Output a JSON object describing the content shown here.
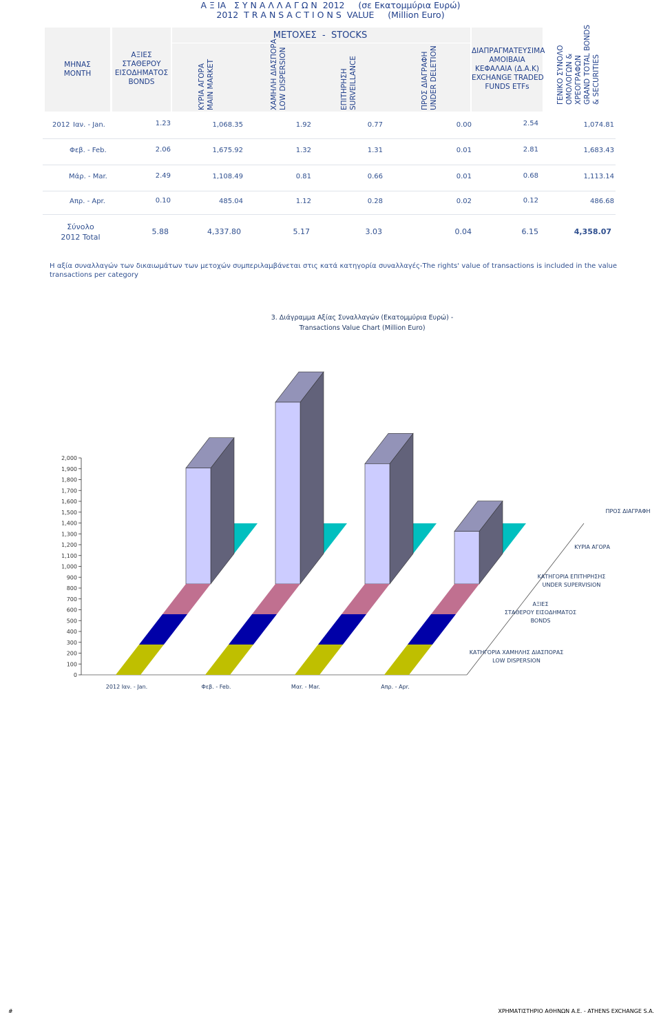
{
  "title": {
    "line1": "Α Ξ ΙΑ   Σ Υ Ν Α Λ Λ Α Γ Ω Ν  2012     (σε Εκατομμύρια Ευρώ)",
    "line2": "2012  T R A N S A C T I O N S  VALUE     (Million Euro)"
  },
  "table": {
    "col_month": "ΜΗΝΑΣ\nMONTH",
    "col_bonds": "ΑΞΙΕΣ\nΣΤΑΘΕΡΟΥ\nΕΙΣΟΔΗΜΑΤΟΣ\nBONDS",
    "stocks_group": "ΜΕΤΟΧΕΣ  -  STOCKS",
    "col_main": "ΚΥΡΙΑ ΑΓΟΡΑ\nMAIN MARKET",
    "col_low": "ΧΑΜΗΛΗ ΔΙΑΣΠΟΡΑ\nLOW DISPERSION",
    "col_surv": "ΕΠΙΤΗΡΗΣΗ\nSURVEILLANCE",
    "col_del": "ΠΡΟΣ ΔΙΑΓΡΑΦΗ\nUNDER DELETION",
    "col_etf": "ΔΙΑΠΡΑΓΜΑΤΕΥΣΙΜΑ\nΑΜΟΙΒΑΙΑ\nΚΕΦΑΛΑΙΑ (Δ.Α.Κ)\nEXCHANGE TRADED\nFUNDS ETFs",
    "col_total": "ΓΕΝΙΚΟ ΣΥΝΟΛΟ\nΟΜΟΛΟΓΩΝ &\nΧΡΕΟΓΡΑΦΩΝ\nGRAND TOTAL BONDS\n& SECURITIES",
    "rows": [
      {
        "year": "2012",
        "month": "Ιαν. - Jan.",
        "bonds": "1.23",
        "main": "1,068.35",
        "low": "1.92",
        "surv": "0.77",
        "del": "0.00",
        "etf": "2.54",
        "total": "1,074.81"
      },
      {
        "year": "",
        "month": "Φεβ. - Feb.",
        "bonds": "2.06",
        "main": "1,675.92",
        "low": "1.32",
        "surv": "1.31",
        "del": "0.01",
        "etf": "2.81",
        "total": "1,683.43"
      },
      {
        "year": "",
        "month": "Μάρ. - Mar.",
        "bonds": "2.49",
        "main": "1,108.49",
        "low": "0.81",
        "surv": "0.66",
        "del": "0.01",
        "etf": "0.68",
        "total": "1,113.14"
      },
      {
        "year": "",
        "month": "Απρ. - Apr.",
        "bonds": "0.10",
        "main": "485.04",
        "low": "1.12",
        "surv": "0.28",
        "del": "0.02",
        "etf": "0.12",
        "total": "486.68"
      }
    ],
    "total_row": {
      "label": "Σύνολο\n2012 Total",
      "bonds": "5.88",
      "main": "4,337.80",
      "low": "5.17",
      "surv": "3.03",
      "del": "0.04",
      "etf": "6.15",
      "total": "4,358.07"
    }
  },
  "note": "Η αξία συναλλαγών των δικαιωμάτων των μετοχών συμπεριλαμβάνεται στις κατά κατηγορία συναλλαγές-The rights' value of transactions is included in the value transactions per category",
  "chart_data": {
    "type": "bar",
    "title_line1": "3.  Διάγραμμα Αξίας Συναλλαγών (Εκατομμύρια Ευρώ) -",
    "title_line2": "Transactions Value Chart  (Million Euro)",
    "categories": [
      "2012  Ιαν. - Jan.",
      "Φεβ. - Feb.",
      "Μαr. - Mar.",
      "Απρ. - Apr."
    ],
    "ylim": [
      0,
      2000
    ],
    "yticks": [
      "0",
      "100",
      "200",
      "300",
      "400",
      "500",
      "600",
      "700",
      "800",
      "900",
      "1,000",
      "1,100",
      "1,200",
      "1,300",
      "1,400",
      "1,500",
      "1,600",
      "1,700",
      "1,800",
      "1,900",
      "2,000"
    ],
    "series": [
      {
        "name": "ΚΑΤΗΓΟΡΙΑ ΧΑΜΗΛΗΣ ΔΙΑΣΠΟΡΑΣ\nLOW DISPERSION",
        "color": "#bfbf00",
        "values": [
          1.92,
          1.32,
          0.81,
          1.12
        ]
      },
      {
        "name": "ΑΞΙΕΣ\nΣΤΑΘΕΡΟΥ ΕΙΣΟΔΗΜΑΤΟΣ\nBONDS",
        "color": "#0000a8",
        "values": [
          1.23,
          2.06,
          2.49,
          0.1
        ]
      },
      {
        "name": "ΚΑΤΗΓΟΡΙΑ ΕΠΙΤΗΡΗΣΗΣ\nUNDER SUPERVISION",
        "color": "#c07090",
        "values": [
          0.77,
          1.31,
          0.66,
          0.28
        ]
      },
      {
        "name": "ΚΥΡΙΑ ΑΓΟΡΑ",
        "color": "#ccccff",
        "values": [
          1068.35,
          1675.92,
          1108.49,
          485.04
        ]
      },
      {
        "name": "ΠΡΟΣ ΔΙΑΓΡΑΦΗ",
        "color": "#00bfbf",
        "values": [
          0.0,
          0.01,
          0.01,
          0.02
        ]
      }
    ]
  },
  "footer": {
    "left": "#",
    "right": "ΧΡΗΜΑΤΙΣΤΗΡΙΟ ΑΘΗΝΩΝ Α.Ε. - ATHENS EXCHANGE S.A."
  }
}
